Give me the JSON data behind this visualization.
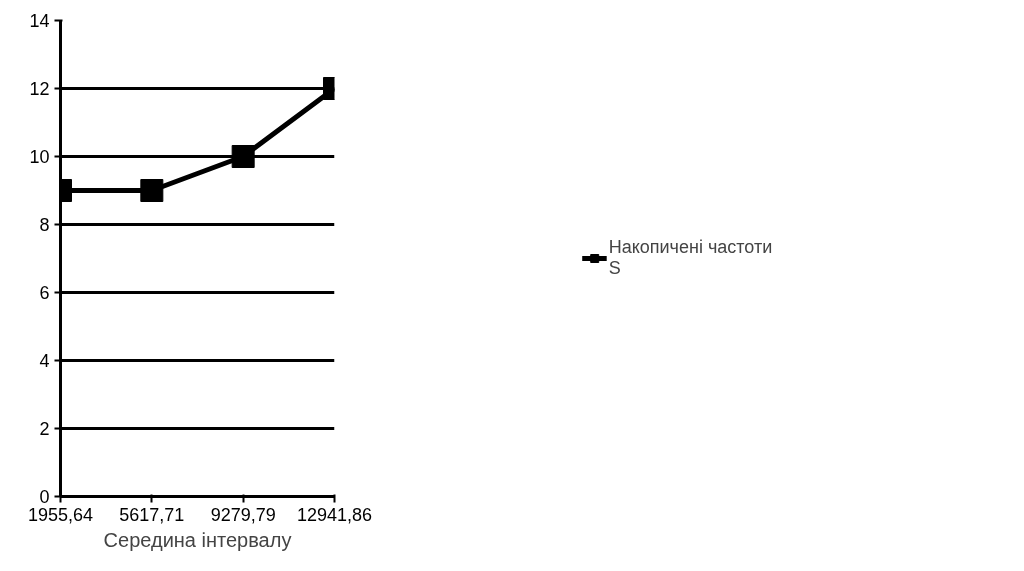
{
  "chart_data": {
    "type": "line",
    "xlabel": "Середина інтервалу",
    "categories": [
      "1955,64",
      "5617,71",
      "9279,79",
      "12941,86"
    ],
    "series": [
      {
        "name": "Накопичені частоти S",
        "color": "#000000",
        "values": [
          9,
          9,
          10,
          12
        ]
      }
    ],
    "ylim": [
      0,
      14
    ],
    "yticks": [
      0,
      2,
      4,
      6,
      8,
      10,
      12,
      14
    ],
    "grid": "y",
    "legend": "right",
    "marker": "square",
    "line_style": "solid"
  }
}
